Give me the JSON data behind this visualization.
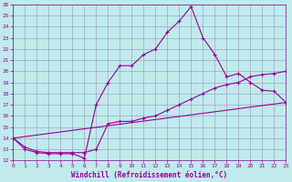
{
  "xlabel": "Windchill (Refroidissement éolien,°C)",
  "xlim": [
    0,
    23
  ],
  "ylim": [
    12,
    26
  ],
  "xticks": [
    0,
    1,
    2,
    3,
    4,
    5,
    6,
    7,
    8,
    9,
    10,
    11,
    12,
    13,
    14,
    15,
    16,
    17,
    18,
    19,
    20,
    21,
    22,
    23
  ],
  "yticks": [
    12,
    13,
    14,
    15,
    16,
    17,
    18,
    19,
    20,
    21,
    22,
    23,
    24,
    25,
    26
  ],
  "line1_x": [
    0,
    1,
    2,
    3,
    4,
    5,
    6,
    7,
    8,
    9,
    10,
    11,
    12,
    13,
    14,
    15,
    16,
    17,
    18,
    19,
    20,
    21,
    22,
    23
  ],
  "line1_y": [
    14.0,
    13.0,
    12.7,
    12.6,
    12.6,
    12.6,
    12.2,
    17.0,
    19.0,
    20.5,
    20.5,
    21.5,
    22.0,
    23.5,
    24.5,
    25.8,
    23.0,
    21.5,
    19.5,
    19.8,
    19.0,
    18.3,
    18.2,
    17.2
  ],
  "line2_x": [
    0,
    1,
    2,
    3,
    4,
    5,
    6,
    7,
    8,
    9,
    10,
    11,
    12,
    13,
    14,
    15,
    16,
    17,
    18,
    19,
    20,
    21,
    22,
    23
  ],
  "line2_y": [
    14.0,
    13.2,
    12.8,
    12.7,
    12.7,
    12.7,
    12.7,
    13.0,
    15.3,
    15.5,
    15.5,
    15.8,
    16.0,
    16.5,
    17.0,
    17.5,
    18.0,
    18.5,
    18.8,
    19.0,
    19.5,
    19.7,
    19.8,
    20.0
  ],
  "line3_x": [
    0,
    23
  ],
  "line3_y": [
    14.0,
    17.2
  ],
  "bg_color": "#c0eaec",
  "line_color": "#990099",
  "grid_color": "#9999bb",
  "marker": "+",
  "markersize": 3,
  "linewidth": 0.8,
  "tick_fontsize": 4.5,
  "xlabel_fontsize": 5.5
}
